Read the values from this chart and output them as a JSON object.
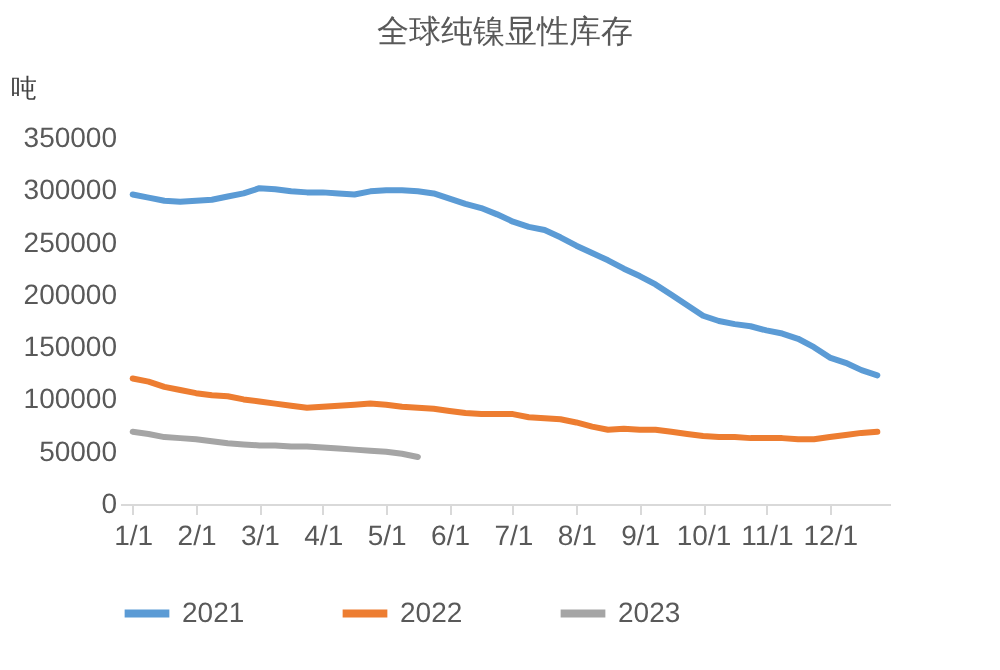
{
  "chart_data": {
    "type": "line",
    "title": "全球纯镍显性库存",
    "ylabel": "吨",
    "categories": [
      "1/1",
      null,
      null,
      null,
      "2/1",
      null,
      null,
      null,
      "3/1",
      null,
      null,
      null,
      "4/1",
      null,
      null,
      null,
      "5/1",
      null,
      null,
      null,
      "6/1",
      null,
      null,
      null,
      "7/1",
      null,
      null,
      null,
      "8/1",
      null,
      null,
      null,
      "9/1",
      null,
      null,
      null,
      "10/1",
      null,
      null,
      null,
      "11/1",
      null,
      null,
      null,
      "12/1",
      null,
      null,
      null
    ],
    "series": [
      {
        "name": "2021",
        "color": "#5b9bd5",
        "values": [
          296000,
          293000,
          290000,
          289000,
          290000,
          291000,
          294000,
          297000,
          302000,
          301000,
          299000,
          298000,
          298000,
          297000,
          296000,
          299000,
          300000,
          300000,
          299000,
          297000,
          292000,
          287000,
          283000,
          277000,
          270000,
          265000,
          262000,
          255000,
          247000,
          240000,
          233000,
          225000,
          218000,
          210000,
          200000,
          190000,
          180000,
          175000,
          172000,
          170000,
          166000,
          163000,
          158000,
          150000,
          140000,
          135000,
          128000,
          123000
        ]
      },
      {
        "name": "2022",
        "color": "#ed7d31",
        "values": [
          120000,
          117000,
          112000,
          109000,
          106000,
          104000,
          103000,
          100000,
          98000,
          96000,
          94000,
          92000,
          93000,
          94000,
          95000,
          96000,
          95000,
          93000,
          92000,
          91000,
          89000,
          87000,
          86000,
          86000,
          86000,
          83000,
          82000,
          81000,
          78000,
          74000,
          71000,
          72000,
          71000,
          71000,
          69000,
          67000,
          65000,
          64000,
          64000,
          63000,
          63000,
          63000,
          62000,
          62000,
          64000,
          66000,
          68000,
          69000
        ]
      },
      {
        "name": "2023",
        "color": "#a5a5a5",
        "values": [
          69000,
          67000,
          64000,
          63000,
          62000,
          60000,
          58000,
          57000,
          56000,
          56000,
          55000,
          55000,
          54000,
          53000,
          52000,
          51000,
          50000,
          48000,
          45000,
          null,
          null,
          null,
          null,
          null,
          null,
          null,
          null,
          null,
          null,
          null,
          null,
          null,
          null,
          null,
          null,
          null,
          null,
          null,
          null,
          null,
          null,
          null,
          null,
          null,
          null,
          null,
          null,
          null
        ]
      }
    ],
    "ylim": [
      0,
      350000
    ],
    "yticks": [
      0,
      50000,
      100000,
      150000,
      200000,
      250000,
      300000,
      350000
    ],
    "grid": false,
    "legend": "bottom",
    "marker": "none",
    "line_style": "solid"
  }
}
